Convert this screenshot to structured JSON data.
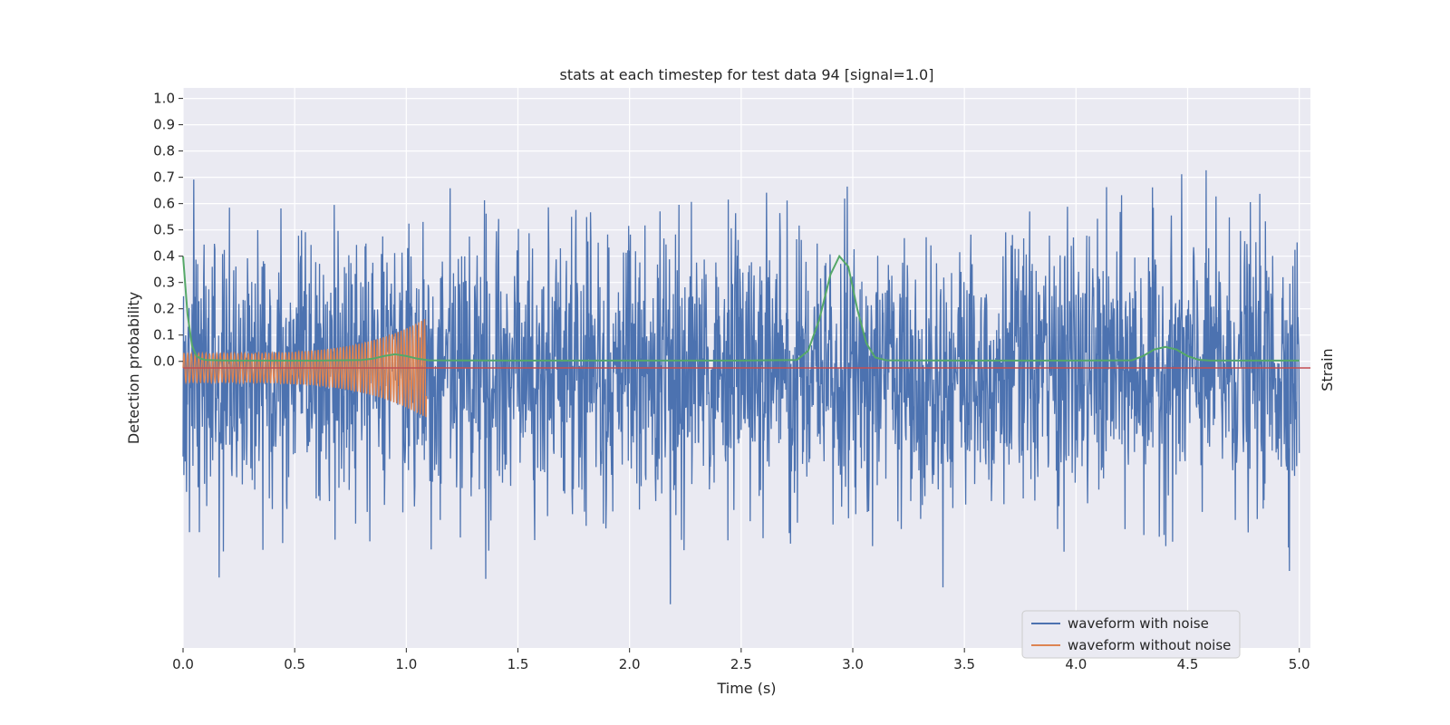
{
  "chart_data": {
    "type": "line",
    "title": "stats at each timestep for test data 94 [signal=1.0]",
    "xlabel": "Time (s)",
    "ylabel": "Detection probability",
    "y2label": "Strain",
    "xlim": [
      0.0,
      5.05
    ],
    "ylim": [
      -1.09,
      1.04
    ],
    "xticks": [
      "0.0",
      "0.5",
      "1.0",
      "1.5",
      "2.0",
      "2.5",
      "3.0",
      "3.5",
      "4.0",
      "4.5",
      "5.0"
    ],
    "yticks": [
      "0.0",
      "0.1",
      "0.2",
      "0.3",
      "0.4",
      "0.5",
      "0.6",
      "0.7",
      "0.8",
      "0.9",
      "1.0"
    ],
    "grid": true,
    "legend_position": "lower-right",
    "colors": {
      "waveform_with_noise": "#4c72b0",
      "waveform_without_noise": "#dd8452",
      "detection_probability": "#55a868",
      "threshold": "#c44e52",
      "plot_background": "#eaeaf2"
    },
    "series": [
      {
        "name": "waveform with noise",
        "description_kind": "noisy strain, amplitude ~ ±0.75 around -0.03",
        "center": -0.03,
        "amplitude": 0.75,
        "x_range": [
          0.0,
          5.0
        ]
      },
      {
        "name": "waveform without noise",
        "chirp_end": 1.09,
        "amplitude_start": 0.055,
        "amplitude_end": 0.19,
        "x_range": [
          0.0,
          1.09
        ]
      },
      {
        "x": [
          0.0,
          0.02,
          0.04,
          0.06,
          0.08,
          0.1,
          0.2,
          0.4,
          0.6,
          0.8,
          0.85,
          0.9,
          0.95,
          1.0,
          1.05,
          1.1,
          1.5,
          2.0,
          2.5,
          2.75,
          2.8,
          2.85,
          2.9,
          2.94,
          2.98,
          3.02,
          3.06,
          3.1,
          3.15,
          3.5,
          4.0,
          4.25,
          4.3,
          4.35,
          4.4,
          4.45,
          4.5,
          4.55,
          4.6,
          5.0
        ],
        "y": [
          0.4,
          0.18,
          0.06,
          0.02,
          0.01,
          0.005,
          0.003,
          0.003,
          0.003,
          0.005,
          0.01,
          0.02,
          0.027,
          0.02,
          0.01,
          0.004,
          0.003,
          0.003,
          0.003,
          0.005,
          0.04,
          0.16,
          0.33,
          0.4,
          0.36,
          0.2,
          0.07,
          0.015,
          0.004,
          0.003,
          0.003,
          0.004,
          0.02,
          0.045,
          0.055,
          0.045,
          0.02,
          0.006,
          0.003,
          0.003
        ]
      },
      {
        "y": -0.025
      }
    ]
  },
  "legend": {
    "items": [
      {
        "label": "waveform with noise",
        "color": "#4c72b0"
      },
      {
        "label": "waveform without noise",
        "color": "#dd8452"
      }
    ]
  }
}
